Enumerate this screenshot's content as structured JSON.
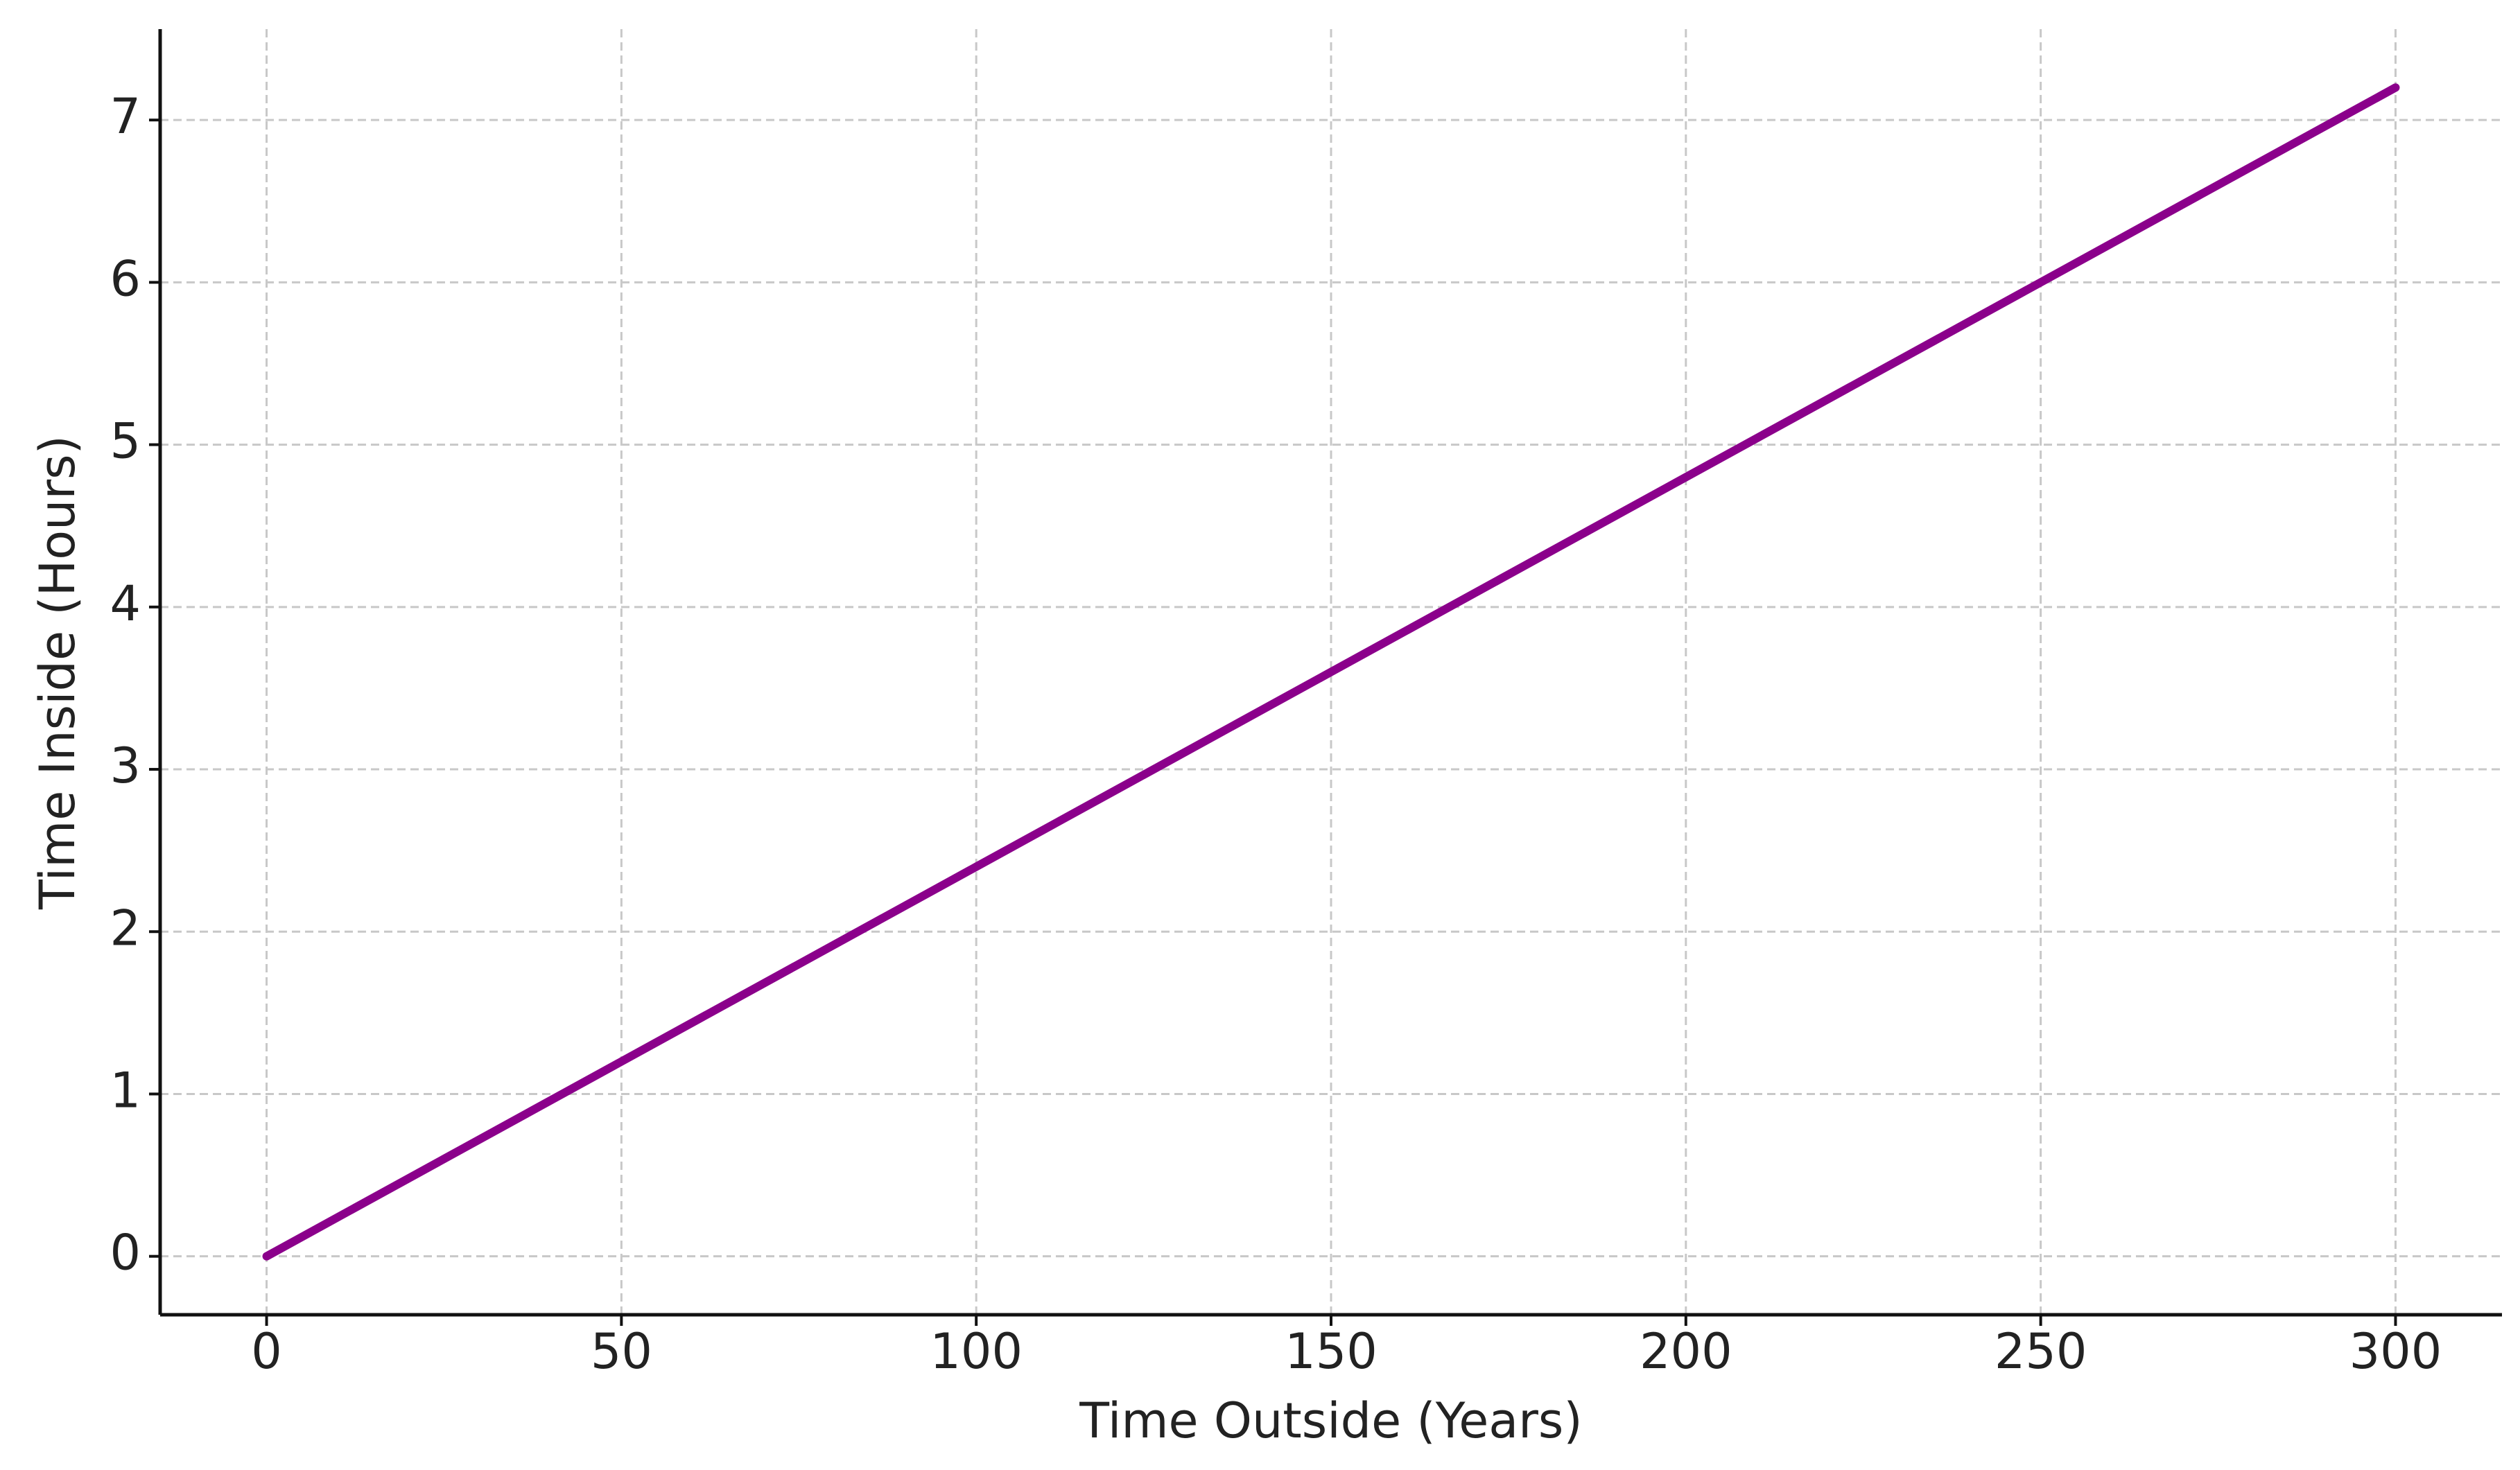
{
  "chart_data": {
    "type": "line",
    "x_label": "Time Outside (Years)",
    "y_label": "Time Inside (Hours)",
    "x": [
      0,
      50,
      100,
      150,
      200,
      250,
      300
    ],
    "series": [
      {
        "name": "Time Inside",
        "color": "#8b008b",
        "values": [
          0,
          1.2,
          2.4,
          3.6,
          4.8,
          6,
          7.2
        ]
      }
    ],
    "xlim": [
      -15,
      315
    ],
    "ylim": [
      -0.36,
      7.56
    ],
    "xticks": [
      0,
      50,
      100,
      150,
      200,
      250,
      300
    ],
    "yticks": [
      0,
      1,
      2,
      3,
      4,
      5,
      6,
      7
    ],
    "grid": true
  }
}
